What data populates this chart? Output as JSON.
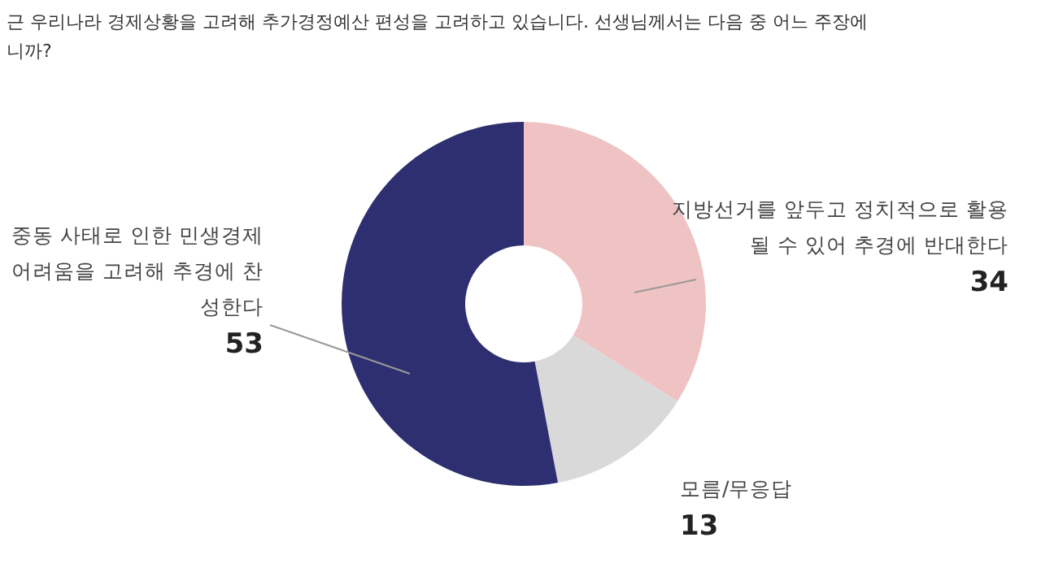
{
  "chart_data": {
    "type": "donut",
    "title": "근 우리나라 경제상황을 고려해 추가경정예산 편성을 고려하고 있습니다. 선생님께서는 다음 중 어느 주장에",
    "subtitle": "니까?",
    "categories": [
      "지방선거를 앞두고 정치적으로 활용될 수 있어 추경에 반대한다",
      "모름/무응답",
      "중동 사태로 인한 민생경제 어려움을 고려해 추경에 찬성한다"
    ],
    "values": [
      34,
      13,
      53
    ],
    "colors": [
      "#efc3c3",
      "#d9d9d9",
      "#2e2f70"
    ],
    "data_labels": true
  }
}
